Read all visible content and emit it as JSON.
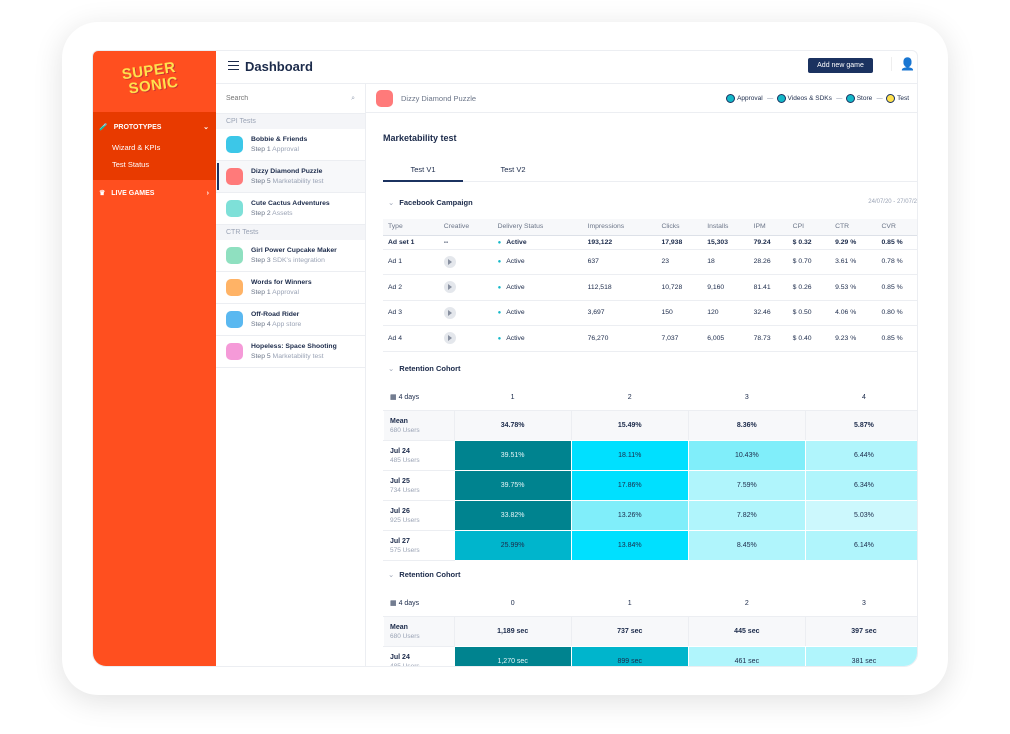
{
  "brand": {
    "logo_text": "SUPER SONIC",
    "accent": "#ff4f1f"
  },
  "sidebar": {
    "prototypes": "PROTOTYPES",
    "sub": [
      "Wizard & KPIs",
      "Test Status"
    ],
    "live": "LIVE GAMES"
  },
  "header": {
    "title": "Dashboard",
    "add_button": "Add new game"
  },
  "list": {
    "search_placeholder": "Search",
    "groups": [
      {
        "label": "CPI Tests",
        "items": [
          {
            "name": "Bobbie & Friends",
            "step": "Step 1",
            "stage": "Approval",
            "color": "#3cc7e8",
            "selected": false
          },
          {
            "name": "Dizzy Diamond Puzzle",
            "step": "Step 5",
            "stage": "Marketability test",
            "color": "#ff7a7a",
            "selected": true
          },
          {
            "name": "Cute Cactus Adventures",
            "step": "Step 2",
            "stage": "Assets",
            "color": "#7ee0d8",
            "selected": false
          }
        ]
      },
      {
        "label": "CTR Tests",
        "items": [
          {
            "name": "Girl Power Cupcake Maker",
            "step": "Step 3",
            "stage": "SDK's integration",
            "color": "#8fe0c0",
            "selected": false
          },
          {
            "name": "Words for Winners",
            "step": "Step 1",
            "stage": "Approval",
            "color": "#ffb366",
            "selected": false
          },
          {
            "name": "Off-Road Rider",
            "step": "Step 4",
            "stage": "App store",
            "color": "#5ab8f0",
            "selected": false
          },
          {
            "name": "Hopeless: Space Shooting",
            "step": "Step 5",
            "stage": "Marketability test",
            "color": "#f59ad8",
            "selected": false
          }
        ]
      }
    ]
  },
  "game": {
    "name": "Dizzy Diamond Puzzle",
    "steps": [
      {
        "label": "Approval",
        "state": "done"
      },
      {
        "label": "Videos & SDKs",
        "state": "done"
      },
      {
        "label": "Store",
        "state": "done"
      },
      {
        "label": "Test",
        "state": "current"
      }
    ]
  },
  "main": {
    "title": "Marketability test",
    "tabs": [
      "Test V1",
      "Test V2"
    ],
    "active_tab": 0
  },
  "facebook": {
    "title": "Facebook Campaign",
    "date": "24/07/20 - 27/07/2",
    "columns": [
      "Type",
      "Creative",
      "Delivery Status",
      "Impressions",
      "Clicks",
      "Installs",
      "IPM",
      "CPI",
      "CTR",
      "CVR"
    ],
    "rows": [
      [
        "Ad set 1",
        "--",
        "Active",
        "193,122",
        "17,938",
        "15,303",
        "79.24",
        "$ 0.32",
        "9.29 %",
        "0.85 %"
      ],
      [
        "Ad 1",
        "",
        "Active",
        "637",
        "23",
        "18",
        "28.26",
        "$ 0.70",
        "3.61 %",
        "0.78 %"
      ],
      [
        "Ad 2",
        "",
        "Active",
        "112,518",
        "10,728",
        "9,160",
        "81.41",
        "$ 0.26",
        "9.53 %",
        "0.85 %"
      ],
      [
        "Ad 3",
        "",
        "Active",
        "3,697",
        "150",
        "120",
        "32.46",
        "$ 0.50",
        "4.06 %",
        "0.80 %"
      ],
      [
        "Ad 4",
        "",
        "Active",
        "76,270",
        "7,037",
        "6,005",
        "78.73",
        "$ 0.40",
        "9.23 %",
        "0.85 %"
      ]
    ]
  },
  "cohort1": {
    "title": "Retention Cohort",
    "range": "4 days",
    "columns": [
      "1",
      "2",
      "3",
      "4"
    ],
    "rows": [
      {
        "label": "Mean",
        "users": "680 Users",
        "values": [
          "34.78%",
          "15.49%",
          "8.36%",
          "5.87%"
        ]
      },
      {
        "label": "Jul 24",
        "users": "485 Users",
        "values": [
          "39.51%",
          "18.11%",
          "10.43%",
          "6.44%"
        ],
        "colors": [
          "#00838f",
          "#00e0ff",
          "#80eefa",
          "#b0f5fc"
        ]
      },
      {
        "label": "Jul 25",
        "users": "734 Users",
        "values": [
          "39.75%",
          "17.86%",
          "7.59%",
          "6.34%"
        ],
        "colors": [
          "#00838f",
          "#00e0ff",
          "#b0f5fc",
          "#b0f5fc"
        ]
      },
      {
        "label": "Jul 26",
        "users": "925 Users",
        "values": [
          "33.82%",
          "13.26%",
          "7.82%",
          "5.03%"
        ],
        "colors": [
          "#00838f",
          "#80eefa",
          "#b0f5fc",
          "#ccf8fd"
        ]
      },
      {
        "label": "Jul 27",
        "users": "575 Users",
        "values": [
          "25.99%",
          "13.84%",
          "8.45%",
          "6.14%"
        ],
        "colors": [
          "#00b5cc",
          "#00e0ff",
          "#b0f5fc",
          "#b0f5fc"
        ]
      }
    ]
  },
  "cohort2": {
    "title": "Retention Cohort",
    "range": "4 days",
    "columns": [
      "0",
      "1",
      "2",
      "3"
    ],
    "rows": [
      {
        "label": "Mean",
        "users": "680 Users",
        "values": [
          "1,189 sec",
          "737 sec",
          "445 sec",
          "397 sec"
        ]
      },
      {
        "label": "Jul 24",
        "users": "485 Users",
        "values": [
          "1,270 sec",
          "899 sec",
          "461 sec",
          "381 sec"
        ],
        "colors": [
          "#00838f",
          "#00b5cc",
          "#b0f5fc",
          "#b0f5fc"
        ]
      }
    ]
  }
}
